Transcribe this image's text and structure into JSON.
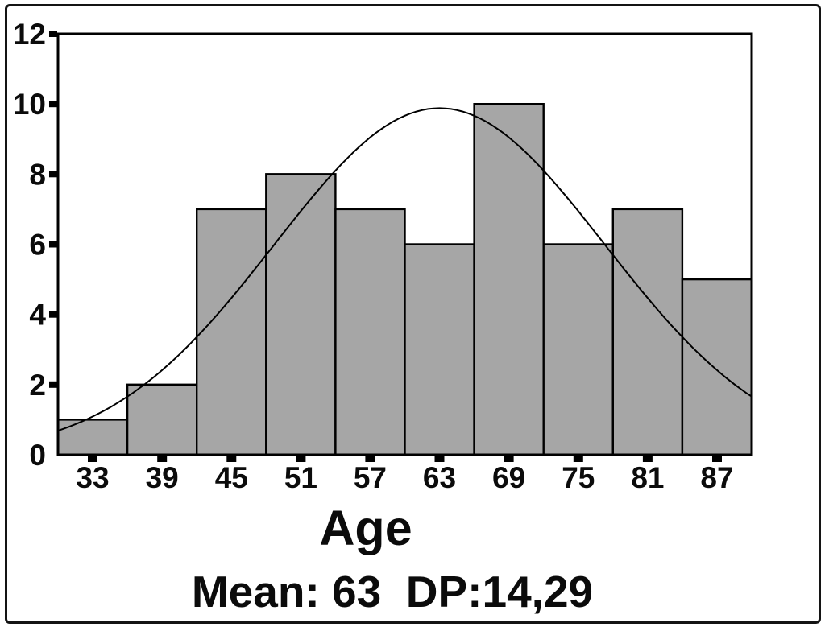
{
  "figure": {
    "title": "Age",
    "subtitle": "Mean: 63  DP:14,29"
  },
  "chart_data": {
    "type": "bar",
    "subtype": "histogram-with-normal-curve",
    "title": "Age",
    "subtitle": "Mean: 63  DP:14,29",
    "xlabel": "Age",
    "ylabel": "",
    "categories": [
      33,
      39,
      45,
      51,
      57,
      63,
      69,
      75,
      81,
      87
    ],
    "values": [
      1,
      2,
      7,
      8,
      7,
      6,
      10,
      6,
      7,
      5
    ],
    "bin_width": 6,
    "x_range": [
      30,
      90
    ],
    "ylim": [
      0,
      12
    ],
    "y_ticks": [
      0,
      2,
      4,
      6,
      8,
      10,
      12
    ],
    "grid": false,
    "legend": "none",
    "bar_color": "#a6a6a6",
    "bar_border_color": "#000000",
    "frame_color": "#000000",
    "curve": {
      "shape": "normal",
      "mean": 63,
      "sd": 14.29,
      "peak": 9.88,
      "color": "#000000"
    },
    "stats": {
      "mean": "63",
      "dp": "14,29"
    }
  }
}
